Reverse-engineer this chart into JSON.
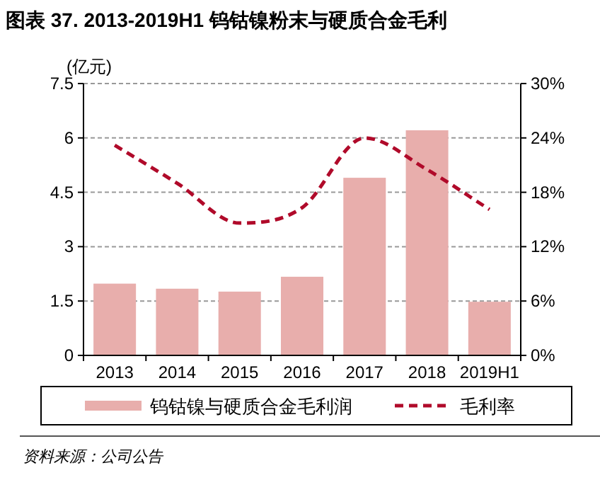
{
  "chart_data": {
    "type": "bar",
    "title": "图表 37. 2013-2019H1 钨钴镍粉末与硬质合金毛利",
    "ylabel": "(亿元)",
    "categories": [
      "2013",
      "2014",
      "2015",
      "2016",
      "2017",
      "2018",
      "2019H1"
    ],
    "series": [
      {
        "name": "钨钴镍与硬质合金毛利润",
        "color": "#e8aeac",
        "values": [
          1.98,
          1.84,
          1.76,
          2.17,
          4.9,
          6.21,
          1.48
        ]
      },
      {
        "name": "毛利率",
        "type": "line",
        "axis": "y2",
        "color": "#b00a2a",
        "line_style": "dashed",
        "values": [
          23.2,
          19.0,
          14.6,
          16.3,
          24.0,
          20.5,
          16.1
        ]
      }
    ],
    "ylim": [
      0,
      7.5
    ],
    "yticks": [
      0,
      1.5,
      3,
      4.5,
      6,
      7.5
    ],
    "y2lim": [
      0,
      30
    ],
    "y2ticks": [
      {
        "value": 0,
        "label": "0%"
      },
      {
        "value": 6,
        "label": "6%"
      },
      {
        "value": 12,
        "label": "12%"
      },
      {
        "value": 18,
        "label": "18%"
      },
      {
        "value": 24,
        "label": "24%"
      },
      {
        "value": 30,
        "label": "30%"
      }
    ],
    "grid": "y",
    "legend": "bottom",
    "annotations": [
      "资料来源：公司公告"
    ]
  }
}
